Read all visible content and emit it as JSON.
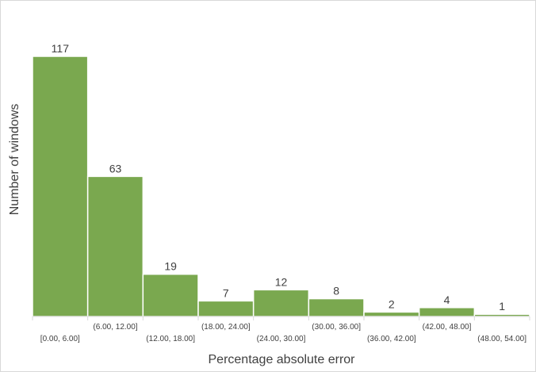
{
  "chart_data": {
    "type": "bar",
    "title": "",
    "xlabel": "Percentage absolute error",
    "ylabel": "Number of windows",
    "categories": [
      "[0.00, 6.00]",
      "(6.00, 12.00]",
      "(12.00, 18.00]",
      "(18.00, 24.00]",
      "(24.00, 30.00]",
      "(30.00, 36.00]",
      "(36.00, 42.00]",
      "(42.00, 48.00]",
      "(48.00, 54.00]"
    ],
    "values": [
      117,
      63,
      19,
      7,
      12,
      8,
      2,
      4,
      1
    ],
    "ylim": [
      0,
      117
    ],
    "grid": false,
    "legend": "none",
    "colors": {
      "bar": "#7aa84f",
      "text": "#404040",
      "axis": "#d9d9d9"
    }
  }
}
